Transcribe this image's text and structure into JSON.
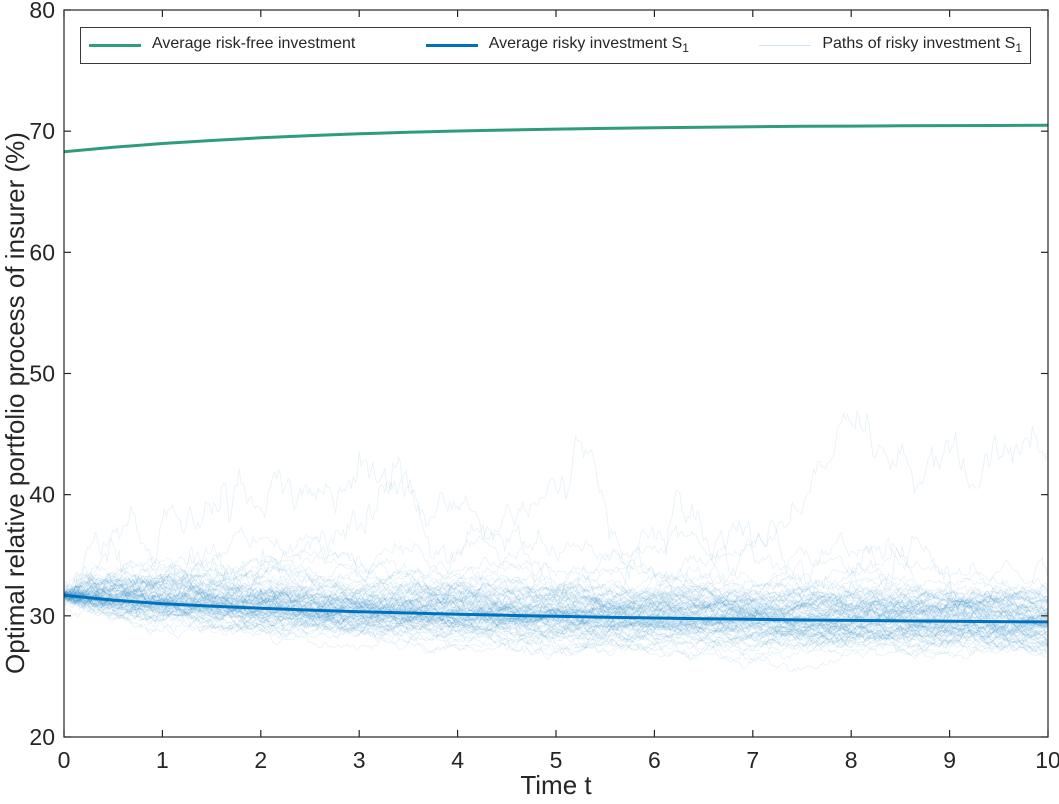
{
  "figure": {
    "background": "#ffffff",
    "axis_color": "#262626"
  },
  "legend": {
    "items": [
      {
        "label": "Average risk-free investment",
        "sub": "",
        "color": "#2e9c7d",
        "line_width": 3
      },
      {
        "label": "Average risky investment S",
        "sub": "1",
        "color": "#0072bd",
        "line_width": 3
      },
      {
        "label": "Paths of risky investment S",
        "sub": "1",
        "color": "#cfe3f4",
        "line_width": 1.5
      }
    ]
  },
  "chart_data": {
    "type": "line",
    "title": "",
    "xlabel": "Time t",
    "ylabel": "Optimal relative portfolio process of insurer (%)",
    "xlim": [
      0,
      10
    ],
    "ylim": [
      20,
      80
    ],
    "xticks": [
      0,
      1,
      2,
      3,
      4,
      5,
      6,
      7,
      8,
      9,
      10
    ],
    "yticks": [
      20,
      30,
      40,
      50,
      60,
      70,
      80
    ],
    "grid": false,
    "legend_position": "top-inside",
    "x": [
      0,
      0.5,
      1,
      1.5,
      2,
      2.5,
      3,
      3.5,
      4,
      4.5,
      5,
      5.5,
      6,
      6.5,
      7,
      7.5,
      8,
      8.5,
      9,
      9.5,
      10
    ],
    "series": [
      {
        "name": "Average risk-free investment",
        "color": "#2e9c7d",
        "width": 3,
        "values": [
          68.3,
          68.67,
          68.98,
          69.23,
          69.45,
          69.63,
          69.78,
          69.91,
          70.01,
          70.1,
          70.17,
          70.23,
          70.29,
          70.33,
          70.37,
          70.4,
          70.42,
          70.44,
          70.46,
          70.47,
          70.49
        ]
      },
      {
        "name": "Average risky investment S1",
        "color": "#0072bd",
        "width": 3,
        "values": [
          31.7,
          31.3,
          31.0,
          30.8,
          30.62,
          30.47,
          30.34,
          30.23,
          30.13,
          30.04,
          29.96,
          29.89,
          29.82,
          29.76,
          29.71,
          29.66,
          29.62,
          29.58,
          29.55,
          29.52,
          29.5
        ]
      }
    ],
    "simulated_paths": {
      "name": "Paths of risky investment S1",
      "color": "#0072bd",
      "opacity": 0.1,
      "width": 0.8,
      "count": 100,
      "seed": 7,
      "steps": 500,
      "start_value": 31.7,
      "follows_series": "Average risky investment S1",
      "theta_regular": 0.55,
      "sigma_regular": 0.045,
      "theta_medium": 0.3,
      "sigma_medium": 0.075,
      "theta_wild": 0.1,
      "sigma_wild": 0.125,
      "typical_band_at_end": [
        28.8,
        33
      ],
      "max_observed_value": 46,
      "max_observed_t": 8.1
    }
  }
}
